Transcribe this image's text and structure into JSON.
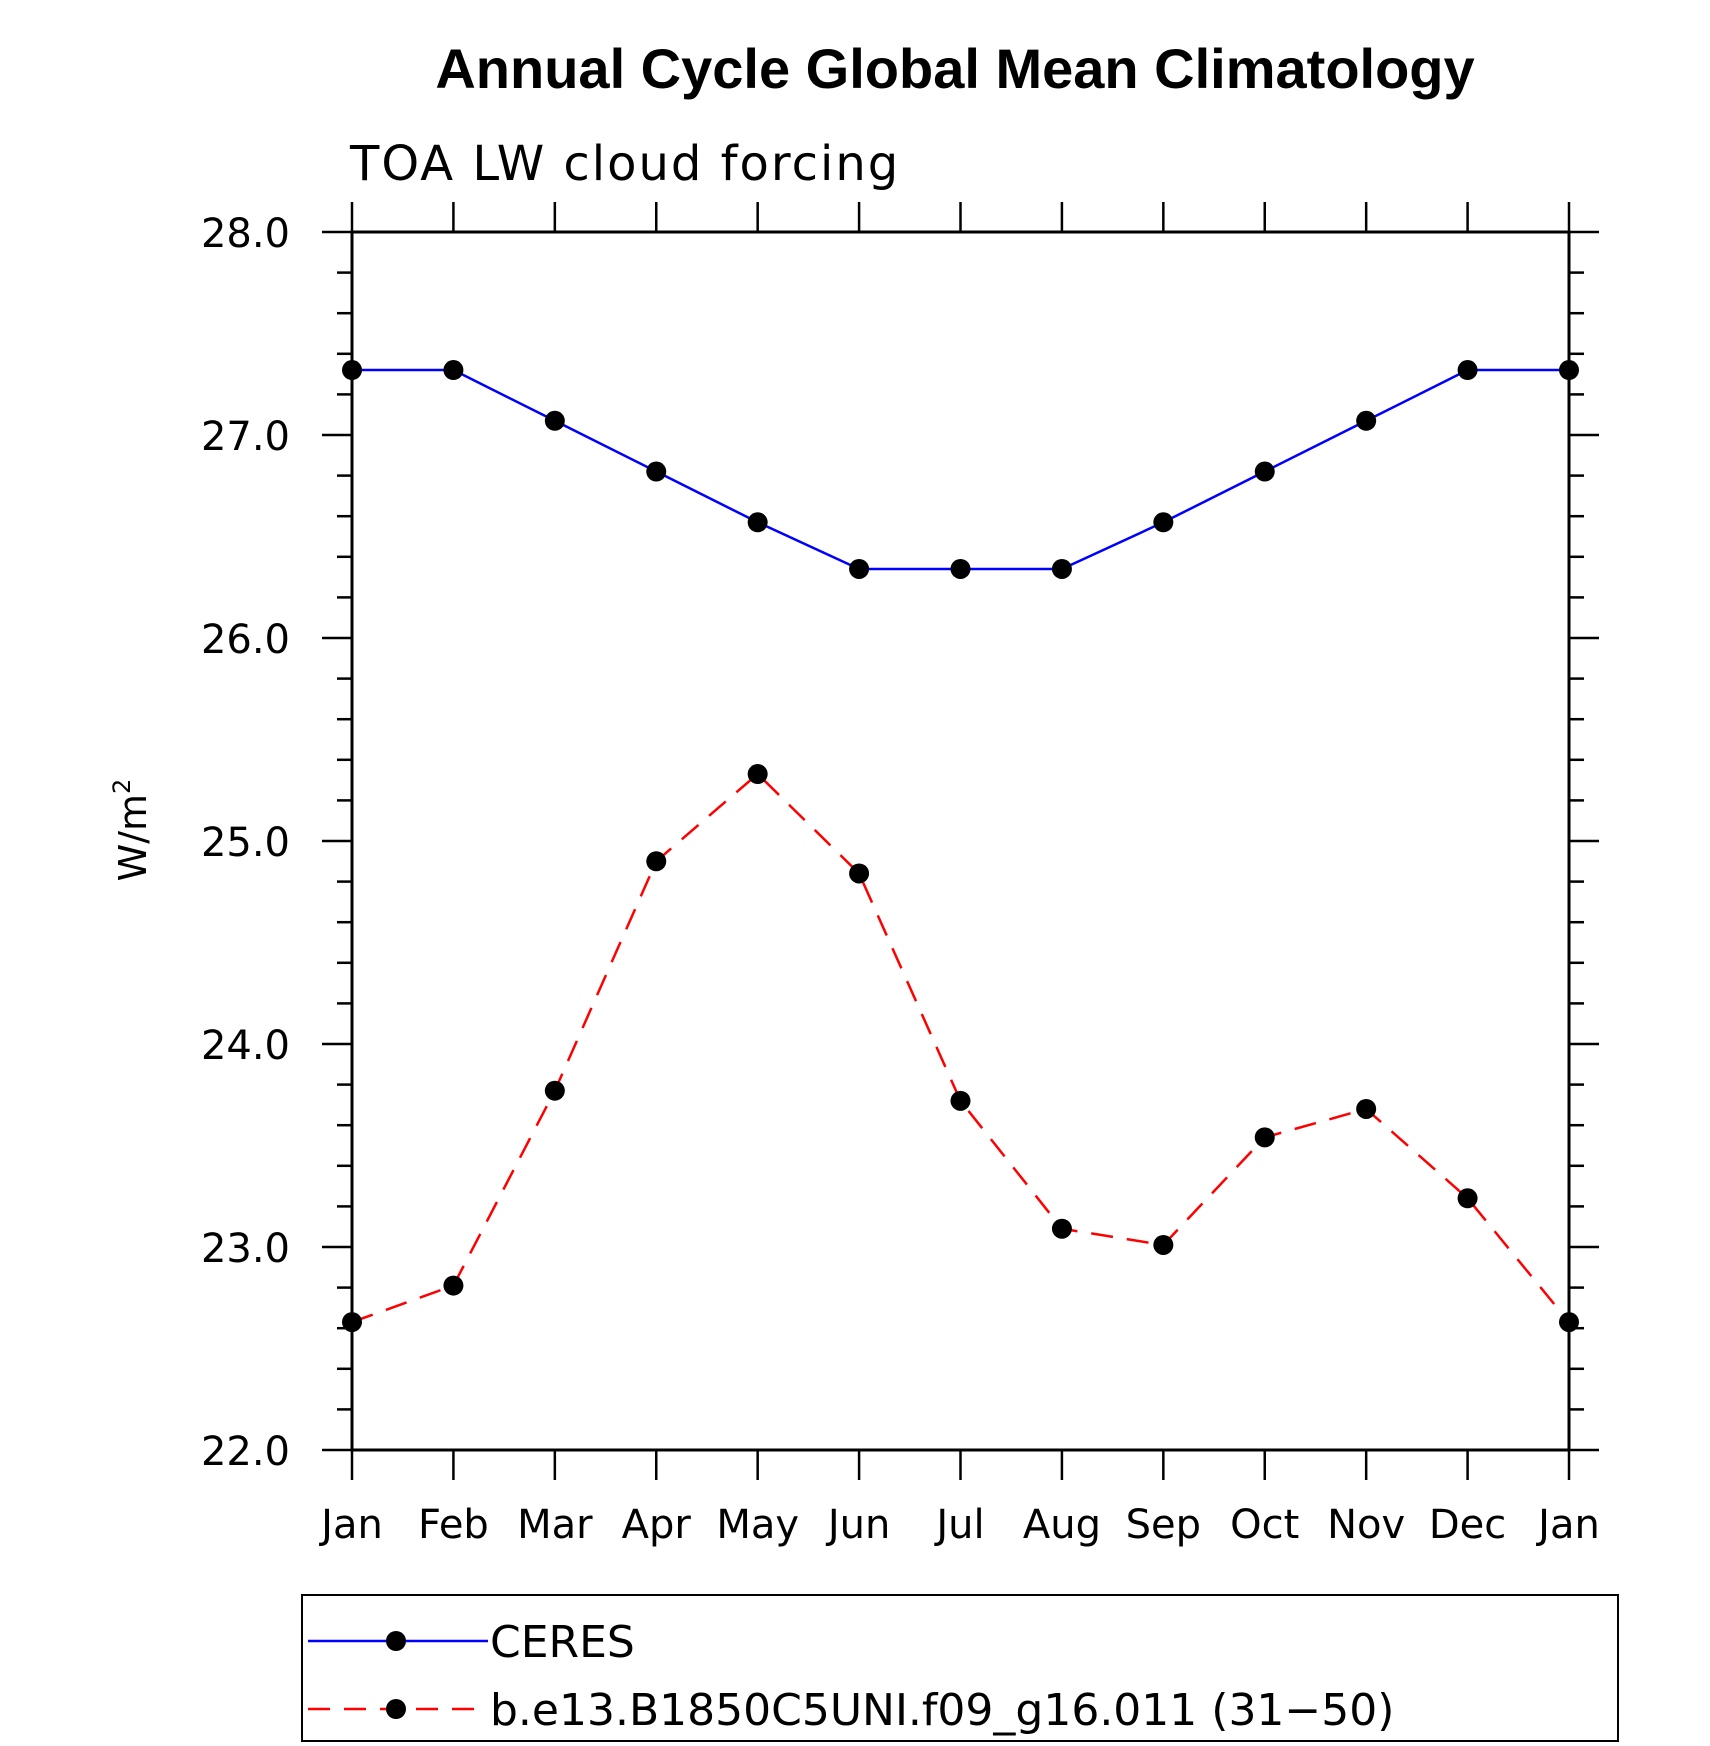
{
  "chart_data": {
    "type": "line",
    "title": "Annual Cycle Global Mean Climatology",
    "subtitle": "TOA LW cloud forcing",
    "xlabel": "",
    "ylabel": "W/m",
    "ylabel_sup": "2",
    "categories": [
      "Jan",
      "Feb",
      "Mar",
      "Apr",
      "May",
      "Jun",
      "Jul",
      "Aug",
      "Sep",
      "Oct",
      "Nov",
      "Dec",
      "Jan"
    ],
    "ylim": [
      22.0,
      28.0
    ],
    "yticks": [
      "22.0",
      "23.0",
      "24.0",
      "25.0",
      "26.0",
      "27.0",
      "28.0"
    ],
    "grid": false,
    "legend_position": "bottom",
    "series": [
      {
        "name": "CERES",
        "color": "#0000ff",
        "line_style": "solid",
        "marker": "filled-circle",
        "values": [
          27.32,
          27.32,
          27.07,
          26.82,
          26.57,
          26.34,
          26.34,
          26.34,
          26.57,
          26.82,
          27.07,
          27.32,
          27.32
        ]
      },
      {
        "name": "b.e13.B1850C5UNI.f09_g16.011 (31−50)",
        "color": "#ff0000",
        "line_style": "dashed",
        "marker": "filled-circle",
        "values": [
          22.63,
          22.81,
          23.77,
          24.9,
          25.33,
          24.84,
          23.72,
          23.09,
          23.01,
          23.54,
          23.68,
          23.24,
          22.63
        ]
      }
    ]
  }
}
